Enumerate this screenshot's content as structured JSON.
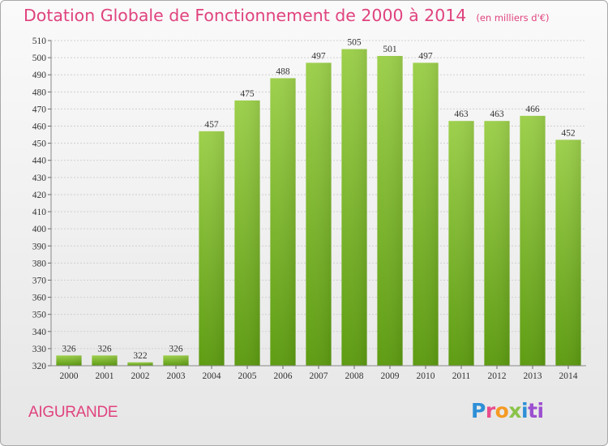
{
  "title": "Dotation Globale de Fonctionnement de 2000 à 2014",
  "subtitle": "(en milliers d'€)",
  "town": "AIGURANDE",
  "logo": {
    "p1": "P",
    "p2": "r",
    "p3": "o",
    "p4": "x",
    "p5": "i",
    "p6": "ti"
  },
  "colors": {
    "title": "#e0437e",
    "bar_top": "#9dd04c",
    "bar_bottom": "#5e9c12",
    "grid": "#cfcfcf",
    "axis_text": "#333333"
  },
  "chart_data": {
    "type": "bar",
    "categories": [
      "2000",
      "2001",
      "2002",
      "2003",
      "2004",
      "2005",
      "2006",
      "2007",
      "2008",
      "2009",
      "2010",
      "2011",
      "2012",
      "2013",
      "2014"
    ],
    "values": [
      326,
      326,
      322,
      326,
      457,
      475,
      488,
      497,
      505,
      501,
      497,
      463,
      463,
      466,
      452
    ],
    "title": "Dotation Globale de Fonctionnement de 2000 à 2014",
    "subtitle": "(en milliers d'€)",
    "xlabel": "",
    "ylabel": "",
    "ylim": [
      320,
      510
    ],
    "yticks": [
      "320",
      "330",
      "340",
      "350",
      "360",
      "370",
      "380",
      "390",
      "400",
      "410",
      "420",
      "430",
      "440",
      "450",
      "460",
      "470",
      "480",
      "490",
      "500",
      "510"
    ],
    "grid": true,
    "legend": "none"
  }
}
